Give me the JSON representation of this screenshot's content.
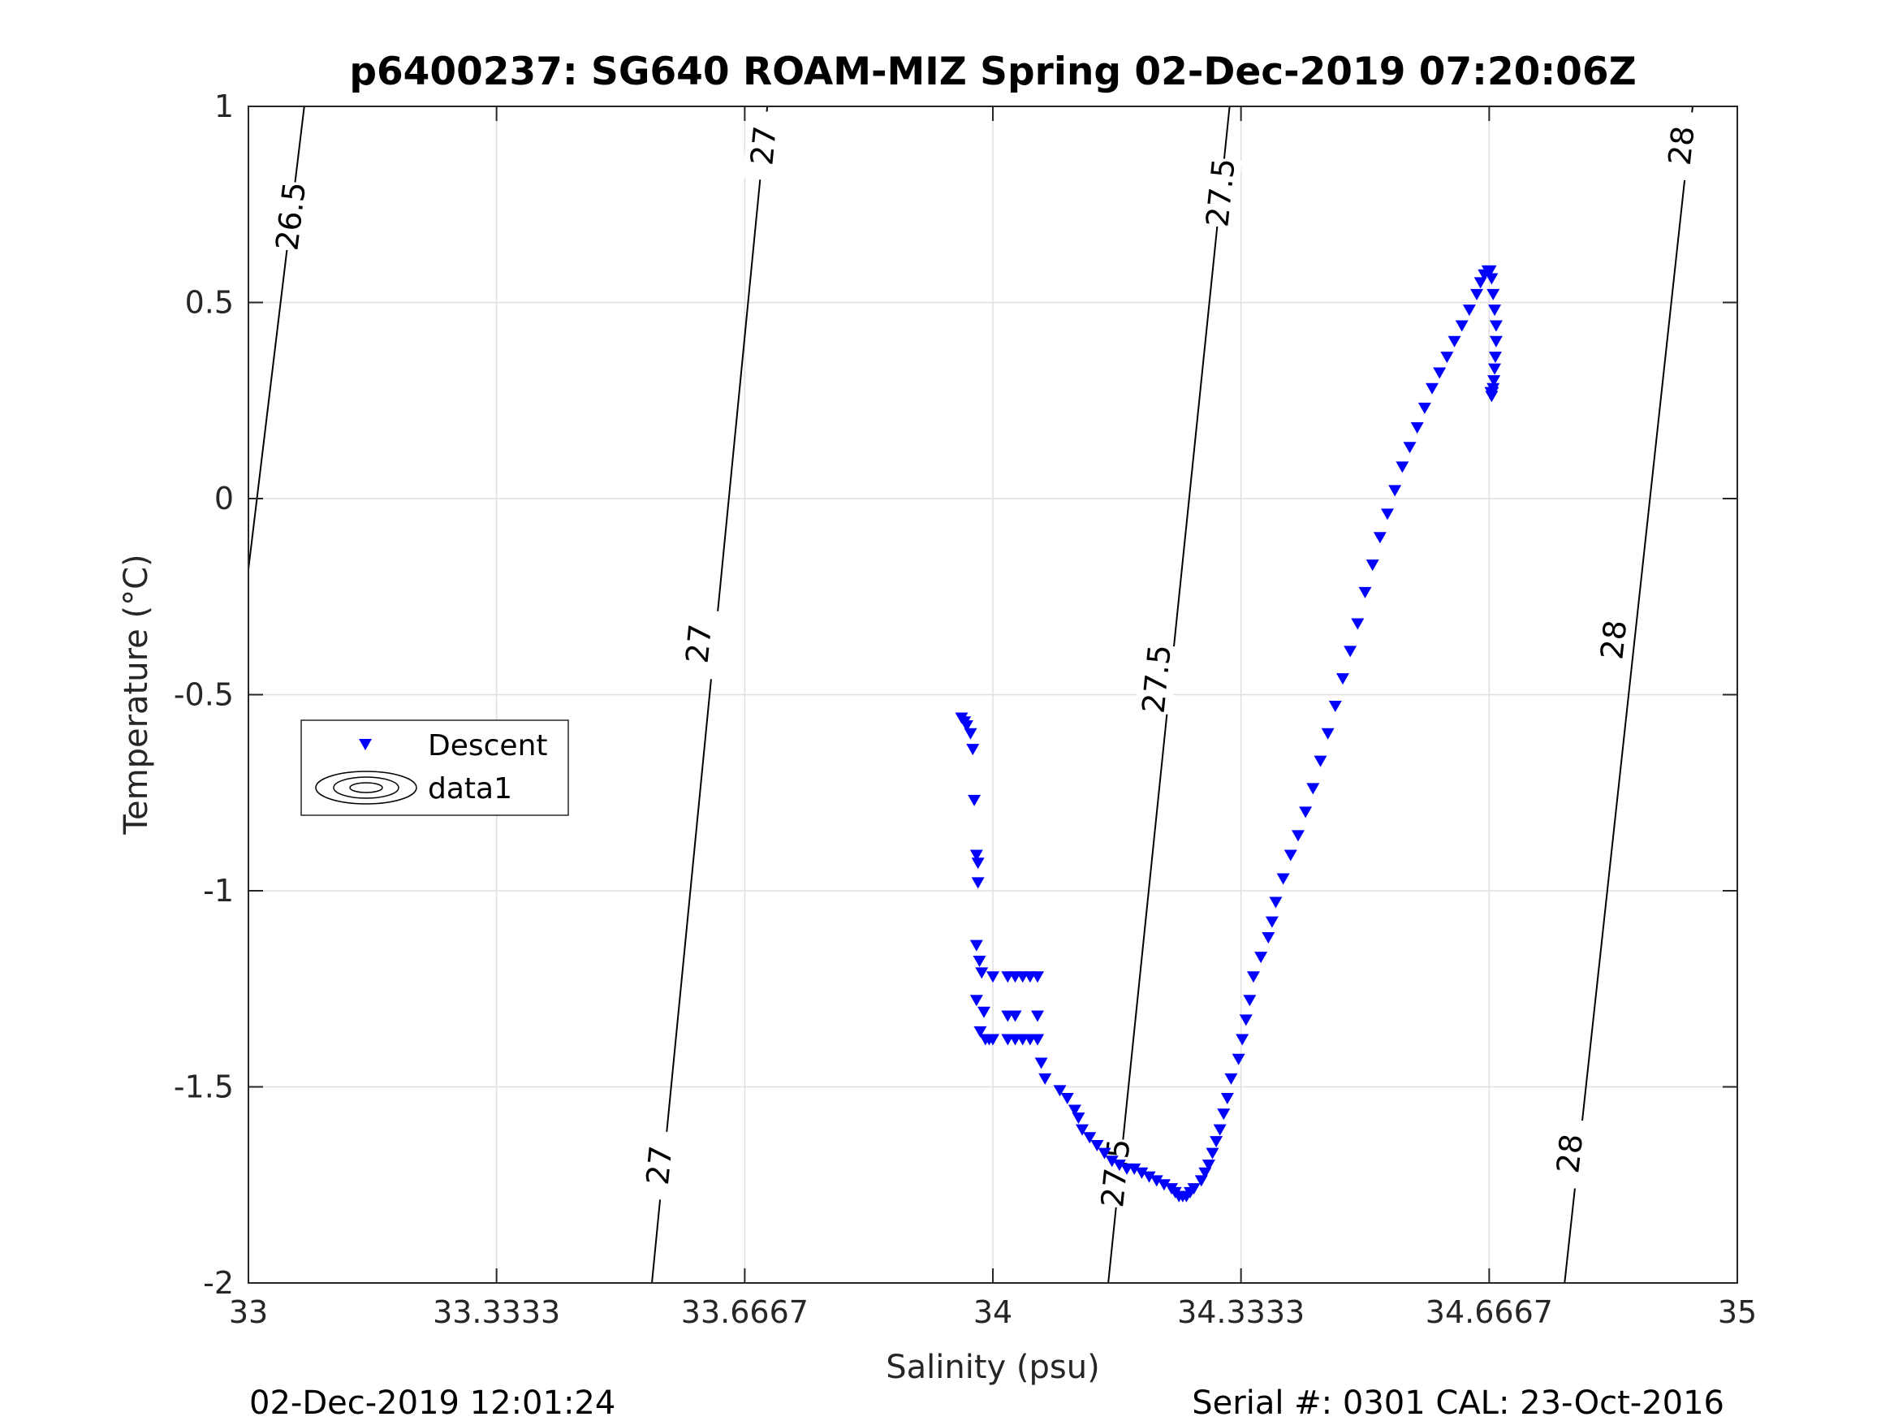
{
  "chart_data": {
    "type": "scatter",
    "title": "p6400237: SG640 ROAM-MIZ Spring 02-Dec-2019 07:20:06Z",
    "xlabel": "Salinity (psu)",
    "ylabel": "Temperature (°C)",
    "xlim": [
      33,
      35
    ],
    "ylim": [
      -2,
      1
    ],
    "grid": true,
    "x_ticks": [
      33,
      33.3333,
      33.6667,
      34,
      34.3333,
      34.6667,
      35
    ],
    "x_tick_labels": [
      "33",
      "33.3333",
      "33.6667",
      "34",
      "34.3333",
      "34.6667",
      "35"
    ],
    "y_ticks": [
      1,
      0.5,
      0,
      -0.5,
      -1,
      -1.5,
      -2
    ],
    "y_tick_labels": [
      "1",
      "0.5",
      "0",
      "-0.5",
      "-1",
      "-1.5",
      "-2"
    ],
    "legend": {
      "placement": "middle-left",
      "entries": [
        {
          "label": "Descent",
          "marker": "triangle-down",
          "color": "#0000ff"
        },
        {
          "label": "data1",
          "marker": "contour",
          "color": "#000000"
        }
      ]
    },
    "footer_left": "02-Dec-2019 12:01:24",
    "footer_right": "Serial #: 0301  CAL: 23-Oct-2016",
    "contours": [
      {
        "label": "26.5",
        "line": [
          [
            33.0,
            -0.18
          ],
          [
            33.075,
            1.0
          ]
        ],
        "labels_at": [
          [
            33.057,
            0.72
          ]
        ]
      },
      {
        "label": "27",
        "line": [
          [
            33.542,
            -2.0
          ],
          [
            33.697,
            1.0
          ]
        ],
        "labels_at": [
          [
            33.552,
            -1.7
          ],
          [
            33.605,
            -0.37
          ],
          [
            33.692,
            0.9
          ]
        ]
      },
      {
        "label": "27.5",
        "line": [
          [
            34.155,
            -2.0
          ],
          [
            34.318,
            1.0
          ]
        ],
        "labels_at": [
          [
            34.165,
            -1.72
          ],
          [
            34.22,
            -0.46
          ],
          [
            34.306,
            0.78
          ]
        ]
      },
      {
        "label": "28",
        "line": [
          [
            34.768,
            -2.0
          ],
          [
            34.94,
            1.0
          ]
        ],
        "labels_at": [
          [
            34.775,
            -1.67
          ],
          [
            34.834,
            -0.36
          ],
          [
            34.925,
            0.9
          ]
        ]
      }
    ],
    "series": [
      {
        "name": "Descent",
        "color": "#0000ff",
        "x": [
          33.958,
          33.962,
          33.965,
          33.97,
          33.973,
          33.975,
          33.978,
          33.98,
          33.98,
          33.978,
          33.982,
          33.985,
          33.978,
          33.983,
          33.988,
          33.99,
          33.995,
          34.0,
          34.0,
          34.02,
          34.03,
          34.04,
          34.05,
          34.06,
          34.02,
          34.03,
          34.06,
          34.03,
          34.06,
          34.02,
          34.04,
          34.05,
          34.06,
          34.065,
          34.07,
          34.09,
          34.1,
          34.11,
          34.115,
          34.12,
          34.13,
          34.14,
          34.15,
          34.16,
          34.17,
          34.18,
          34.19,
          34.2,
          34.21,
          34.22,
          34.23,
          34.24,
          34.245,
          34.25,
          34.255,
          34.26,
          34.265,
          34.27,
          34.28,
          34.285,
          34.29,
          34.295,
          34.3,
          34.305,
          34.31,
          34.315,
          34.32,
          34.33,
          34.335,
          34.34,
          34.345,
          34.35,
          34.36,
          34.37,
          34.375,
          34.38,
          34.39,
          34.4,
          34.41,
          34.42,
          34.43,
          34.44,
          34.45,
          34.46,
          34.47,
          34.48,
          34.49,
          34.5,
          34.51,
          34.52,
          34.53,
          34.54,
          34.55,
          34.56,
          34.57,
          34.58,
          34.59,
          34.6,
          34.61,
          34.62,
          34.63,
          34.64,
          34.65,
          34.655,
          34.66,
          34.665,
          34.668,
          34.67,
          34.672,
          34.674,
          34.676,
          34.676,
          34.675,
          34.674,
          34.673,
          34.672,
          34.671,
          34.67,
          34.669
        ],
        "y": [
          -0.56,
          -0.57,
          -0.58,
          -0.6,
          -0.64,
          -0.77,
          -0.91,
          -0.93,
          -0.98,
          -1.14,
          -1.18,
          -1.21,
          -1.28,
          -1.36,
          -1.31,
          -1.38,
          -1.38,
          -1.38,
          -1.22,
          -1.22,
          -1.22,
          -1.22,
          -1.22,
          -1.22,
          -1.32,
          -1.32,
          -1.32,
          -1.38,
          -1.38,
          -1.38,
          -1.38,
          -1.38,
          -1.38,
          -1.44,
          -1.48,
          -1.51,
          -1.53,
          -1.56,
          -1.58,
          -1.61,
          -1.63,
          -1.65,
          -1.67,
          -1.69,
          -1.7,
          -1.71,
          -1.71,
          -1.72,
          -1.73,
          -1.74,
          -1.75,
          -1.76,
          -1.77,
          -1.78,
          -1.78,
          -1.78,
          -1.77,
          -1.76,
          -1.74,
          -1.72,
          -1.7,
          -1.67,
          -1.64,
          -1.61,
          -1.57,
          -1.53,
          -1.48,
          -1.43,
          -1.38,
          -1.33,
          -1.28,
          -1.22,
          -1.17,
          -1.12,
          -1.08,
          -1.03,
          -0.97,
          -0.91,
          -0.86,
          -0.8,
          -0.74,
          -0.67,
          -0.6,
          -0.53,
          -0.46,
          -0.39,
          -0.32,
          -0.24,
          -0.17,
          -0.1,
          -0.04,
          0.02,
          0.08,
          0.13,
          0.18,
          0.23,
          0.28,
          0.32,
          0.36,
          0.4,
          0.44,
          0.48,
          0.52,
          0.55,
          0.57,
          0.58,
          0.58,
          0.56,
          0.52,
          0.48,
          0.44,
          0.4,
          0.36,
          0.33,
          0.3,
          0.28,
          0.27,
          0.26,
          0.27
        ]
      }
    ]
  }
}
